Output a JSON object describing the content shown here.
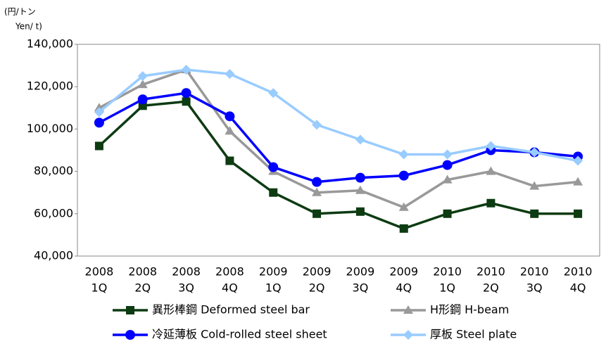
{
  "chart_data": {
    "type": "line",
    "y_label": [
      "(円/トン",
      "Yen/ t)"
    ],
    "categories": [
      [
        "2008",
        "1Q"
      ],
      [
        "2008",
        "2Q"
      ],
      [
        "2008",
        "3Q"
      ],
      [
        "2008",
        "4Q"
      ],
      [
        "2009",
        "1Q"
      ],
      [
        "2009",
        "2Q"
      ],
      [
        "2009",
        "3Q"
      ],
      [
        "2009",
        "4Q"
      ],
      [
        "2010",
        "1Q"
      ],
      [
        "2010",
        "2Q"
      ],
      [
        "2010",
        "3Q"
      ],
      [
        "2010",
        "4Q"
      ]
    ],
    "series": [
      {
        "name": "異形棒鋼 Deformed steel bar",
        "color": "#0d3b12",
        "marker": "square",
        "values": [
          92000,
          111000,
          113000,
          85000,
          70000,
          60000,
          61000,
          53000,
          60000,
          65000,
          60000,
          60000
        ]
      },
      {
        "name": "H形鋼 H-beam",
        "color": "#999999",
        "marker": "triangle",
        "values": [
          110000,
          121000,
          128000,
          99000,
          80000,
          70000,
          71000,
          63000,
          76000,
          80000,
          73000,
          75000
        ]
      },
      {
        "name": "冷延薄板 Cold-rolled steel sheet",
        "color": "#0000ff",
        "marker": "circle",
        "values": [
          103000,
          114000,
          117000,
          106000,
          82000,
          75000,
          77000,
          78000,
          83000,
          90000,
          89000,
          87000
        ]
      },
      {
        "name": "厚板 Steel plate",
        "color": "#99ccff",
        "marker": "diamond",
        "values": [
          108000,
          125000,
          128000,
          126000,
          117000,
          102000,
          95000,
          88000,
          88000,
          92000,
          89000,
          85000
        ]
      }
    ],
    "ylim": [
      40000,
      140000
    ],
    "yticks": [
      {
        "value": 40000,
        "label": "40,000"
      },
      {
        "value": 60000,
        "label": "60,000"
      },
      {
        "value": 80000,
        "label": "80,000"
      },
      {
        "value": 100000,
        "label": "100,000"
      },
      {
        "value": 120000,
        "label": "120,000"
      },
      {
        "value": 140000,
        "label": "140,000"
      }
    ],
    "grid": false
  }
}
